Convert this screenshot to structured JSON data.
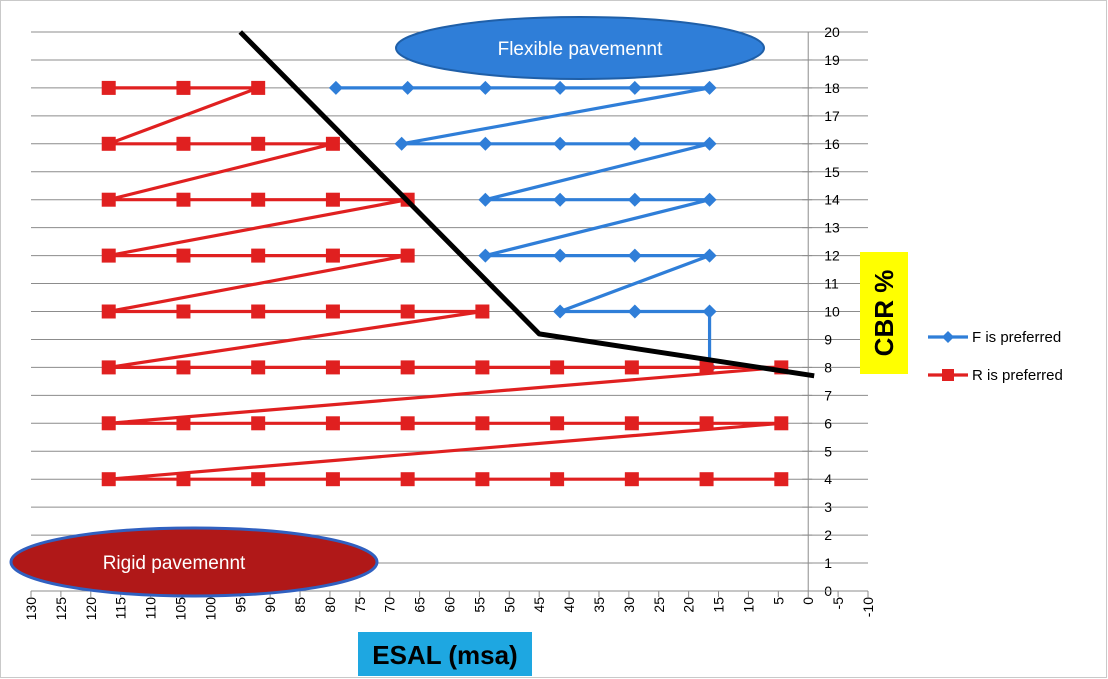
{
  "chart_data": {
    "type": "line",
    "xlabel": "ESAL (msa)",
    "ylabel": "CBR %",
    "x_axis": {
      "min": -10,
      "max": 130,
      "step": 5,
      "reversed": true
    },
    "y_axis": {
      "min": 0,
      "max": 20,
      "step": 1,
      "position": "right-of-zero"
    },
    "grid": {
      "horizontal": true,
      "vertical": false
    },
    "legend_position": "right",
    "series": [
      {
        "name": "F is preferred",
        "color": "#2f7ed8",
        "marker": "diamond",
        "points": [
          [
            79,
            18
          ],
          [
            67,
            18
          ],
          [
            54,
            18
          ],
          [
            41.5,
            18
          ],
          [
            29,
            18
          ],
          [
            16.5,
            18
          ],
          [
            68,
            16
          ],
          [
            54,
            16
          ],
          [
            41.5,
            16
          ],
          [
            29,
            16
          ],
          [
            16.5,
            16
          ],
          [
            54,
            14
          ],
          [
            41.5,
            14
          ],
          [
            29,
            14
          ],
          [
            16.5,
            14
          ],
          [
            54,
            12
          ],
          [
            41.5,
            12
          ],
          [
            29,
            12
          ],
          [
            16.5,
            12
          ],
          [
            41.5,
            10
          ],
          [
            29,
            10
          ],
          [
            16.5,
            10
          ],
          [
            16.5,
            8
          ]
        ]
      },
      {
        "name": "R is preferred",
        "color": "#e02020",
        "marker": "square",
        "points": [
          [
            117,
            18
          ],
          [
            104.5,
            18
          ],
          [
            92,
            18
          ],
          [
            117,
            16
          ],
          [
            104.5,
            16
          ],
          [
            92,
            16
          ],
          [
            79.5,
            16
          ],
          [
            117,
            14
          ],
          [
            104.5,
            14
          ],
          [
            92,
            14
          ],
          [
            79.5,
            14
          ],
          [
            67,
            14
          ],
          [
            117,
            12
          ],
          [
            104.5,
            12
          ],
          [
            92,
            12
          ],
          [
            79.5,
            12
          ],
          [
            67,
            12
          ],
          [
            117,
            10
          ],
          [
            104.5,
            10
          ],
          [
            92,
            10
          ],
          [
            79.5,
            10
          ],
          [
            67,
            10
          ],
          [
            54.5,
            10
          ],
          [
            117,
            8
          ],
          [
            104.5,
            8
          ],
          [
            92,
            8
          ],
          [
            79.5,
            8
          ],
          [
            67,
            8
          ],
          [
            54.5,
            8
          ],
          [
            42,
            8
          ],
          [
            29.5,
            8
          ],
          [
            17,
            8
          ],
          [
            4.5,
            8
          ],
          [
            117,
            6
          ],
          [
            104.5,
            6
          ],
          [
            92,
            6
          ],
          [
            79.5,
            6
          ],
          [
            67,
            6
          ],
          [
            54.5,
            6
          ],
          [
            42,
            6
          ],
          [
            29.5,
            6
          ],
          [
            17,
            6
          ],
          [
            4.5,
            6
          ],
          [
            117,
            4
          ],
          [
            104.5,
            4
          ],
          [
            92,
            4
          ],
          [
            79.5,
            4
          ],
          [
            67,
            4
          ],
          [
            54.5,
            4
          ],
          [
            42,
            4
          ],
          [
            29.5,
            4
          ],
          [
            17,
            4
          ],
          [
            4.5,
            4
          ]
        ]
      }
    ],
    "boundary_line": {
      "color": "#000000",
      "points": [
        [
          95,
          20
        ],
        [
          45,
          9.2
        ],
        [
          -1,
          7.7
        ]
      ]
    },
    "annotations": [
      {
        "text": "Flexible pavemennt",
        "fill": "#2f7ed8",
        "stroke": "#1f5fa8"
      },
      {
        "text": "Rigid pavemennt",
        "fill": "#b01818",
        "stroke": "#3060c0"
      }
    ]
  }
}
